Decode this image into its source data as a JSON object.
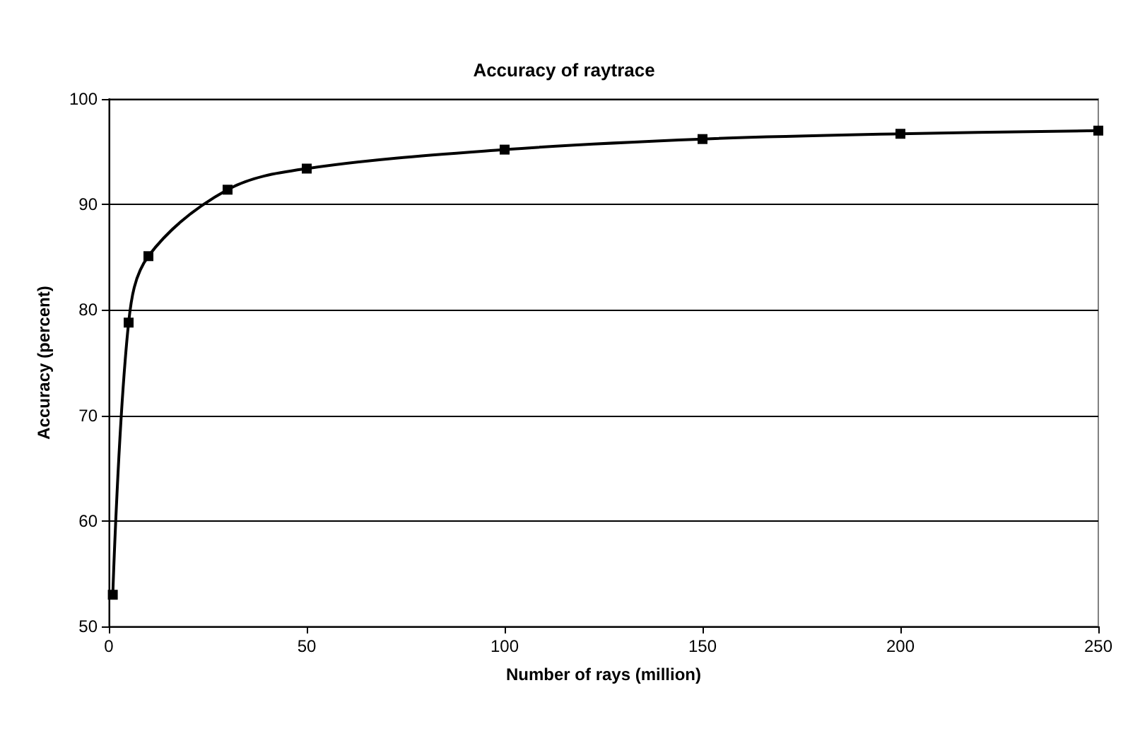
{
  "chart_data": {
    "type": "line",
    "title": "Accuracy of raytrace",
    "xlabel": "Number of rays (million)",
    "ylabel": "Accuracy (percent)",
    "x": [
      1,
      5,
      10,
      30,
      50,
      100,
      150,
      200,
      250
    ],
    "series": [
      {
        "color": "#000000",
        "values": [
          53,
          78.8,
          85.1,
          91.4,
          93.4,
          95.2,
          96.2,
          96.7,
          97.0
        ]
      }
    ],
    "xlim": [
      0,
      250
    ],
    "xticks": [
      0,
      50,
      100,
      150,
      200,
      250
    ],
    "ylim": [
      50,
      100
    ],
    "yticks": [
      50,
      60,
      70,
      80,
      90,
      100
    ],
    "grid": "y",
    "marker": "square",
    "line_style": "solid"
  }
}
